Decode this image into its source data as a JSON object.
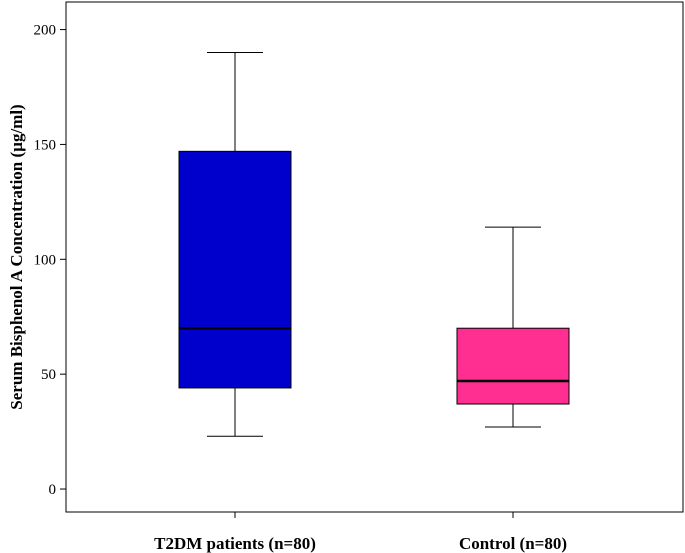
{
  "chart_data": {
    "type": "boxplot",
    "title": "",
    "xlabel": "",
    "ylabel": "Serum Bisphenol A Concentration (µg/ml)",
    "ylim": [
      -10,
      212
    ],
    "yticks": [
      0,
      50,
      100,
      150,
      200
    ],
    "grid": false,
    "categories": [
      "T2DM patients (n=80)",
      "Control (n=80)"
    ],
    "boxes": [
      {
        "category": "T2DM patients (n=80)",
        "min": 23,
        "q1": 44,
        "median": 70,
        "q3": 147,
        "max": 190,
        "color": "#0000cc"
      },
      {
        "category": "Control (n=80)",
        "min": 27,
        "q1": 37,
        "median": 47,
        "q3": 70,
        "max": 114,
        "color": "#ff2f92"
      }
    ]
  }
}
